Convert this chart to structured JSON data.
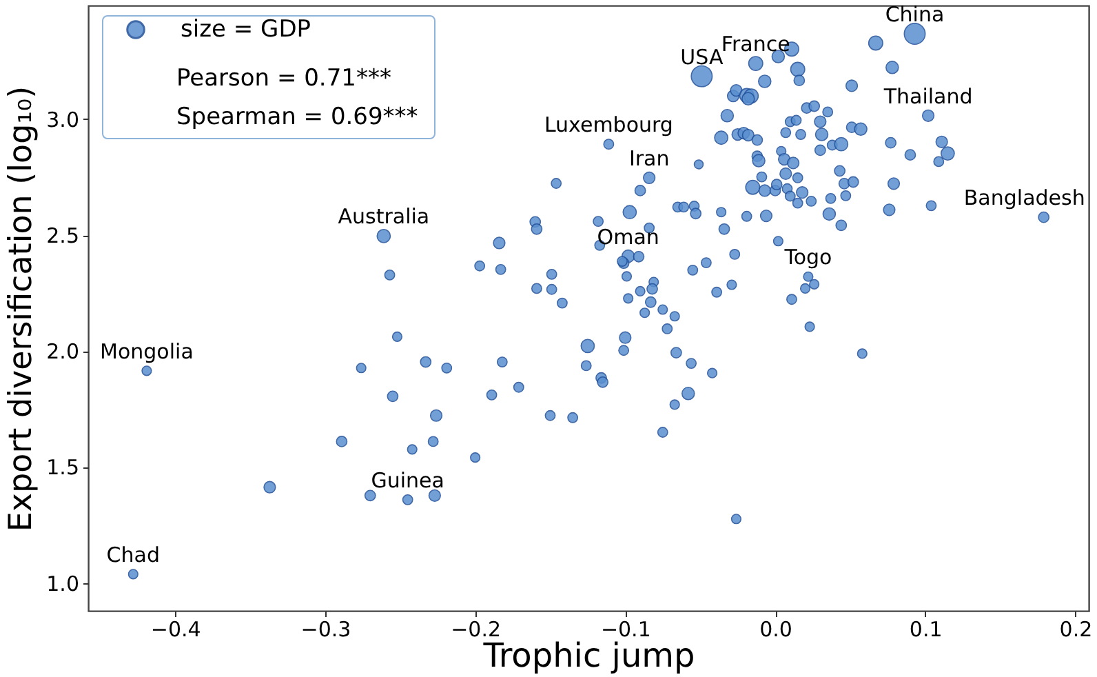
{
  "chart_data": {
    "type": "bubble",
    "xlabel": "Trophic jump",
    "ylabel": "Export diversification (log₁₀)",
    "xlim": [
      -0.458,
      0.209
    ],
    "ylim": [
      0.88,
      3.49
    ],
    "xticks": [
      {
        "value": -0.4,
        "label": "−0.4"
      },
      {
        "value": -0.3,
        "label": "−0.3"
      },
      {
        "value": -0.2,
        "label": "−0.2"
      },
      {
        "value": -0.1,
        "label": "−0.1"
      },
      {
        "value": 0,
        "label": "0.0"
      },
      0.1,
      0.2
    ],
    "yticks": [
      {
        "value": 1,
        "label": "1.0"
      },
      1.5,
      {
        "value": 2,
        "label": "2.0"
      },
      2.5,
      {
        "value": 3,
        "label": "3.0"
      }
    ],
    "legend": "top left",
    "marker": "circle",
    "series": [
      {
        "name": "size = GDP",
        "color": "#5a8fcf",
        "x": [
          -0.146,
          -0.261,
          -0.257,
          -0.184,
          -0.197,
          -0.183,
          -0.16,
          -0.159,
          -0.149,
          -0.159,
          -0.149,
          -0.142,
          0.093,
          0.067,
          0.078,
          0.051,
          0.102,
          -0.049,
          -0.013,
          0.002,
          0.011,
          0.015,
          0.016,
          -0.007,
          -0.028,
          -0.026,
          -0.019,
          -0.016,
          -0.018,
          -0.032,
          -0.036,
          -0.025,
          -0.021,
          -0.018,
          -0.012,
          -0.111,
          -0.051,
          -0.084,
          -0.09,
          -0.097,
          -0.118,
          -0.117,
          -0.084,
          -0.098,
          -0.091,
          -0.101,
          -0.102,
          -0.099,
          -0.081,
          -0.082,
          -0.09,
          -0.098,
          -0.083,
          -0.075,
          -0.087,
          -0.067,
          -0.065,
          -0.061,
          -0.054,
          -0.053,
          -0.036,
          -0.034,
          -0.019,
          -0.006,
          -0.015,
          -0.007,
          0.0,
          0.001,
          -0.009,
          -0.012,
          -0.011,
          0.004,
          0.006,
          0.012,
          0.007,
          0.015,
          0.008,
          0.01,
          0.018,
          0.015,
          0.024,
          0.037,
          0.036,
          0.044,
          0.043,
          0.046,
          0.052,
          0.047,
          0.007,
          0.017,
          0.01,
          0.014,
          0.021,
          0.026,
          0.035,
          0.03,
          0.031,
          0.03,
          0.038,
          0.044,
          0.051,
          0.057,
          0.077,
          0.09,
          0.111,
          0.115,
          0.109,
          0.079,
          0.076,
          0.104,
          0.179,
          -0.027,
          0.002,
          -0.046,
          -0.055,
          -0.039,
          -0.029,
          0.022,
          0.026,
          0.02,
          0.011,
          -0.072,
          -0.1,
          -0.125,
          -0.101,
          -0.066,
          -0.126,
          -0.116,
          -0.115,
          -0.056,
          -0.042,
          -0.058,
          -0.067,
          -0.075,
          -0.026,
          0.023,
          0.058,
          -0.419,
          -0.252,
          -0.276,
          -0.233,
          -0.219,
          -0.255,
          -0.226,
          -0.182,
          -0.189,
          -0.171,
          -0.15,
          -0.135,
          -0.289,
          -0.242,
          -0.228,
          -0.2,
          -0.337,
          -0.27,
          -0.245,
          -0.227,
          -0.428
        ],
        "values": [
          2.723,
          2.496,
          2.328,
          2.466,
          2.367,
          2.352,
          2.557,
          2.526,
          2.331,
          2.27,
          2.266,
          2.207,
          3.368,
          3.328,
          3.223,
          3.144,
          3.015,
          3.185,
          3.24,
          3.27,
          3.302,
          3.215,
          3.167,
          3.163,
          3.1,
          3.124,
          3.102,
          3.1,
          3.088,
          3.015,
          2.92,
          2.934,
          2.94,
          2.931,
          2.91,
          2.892,
          2.805,
          2.747,
          2.692,
          2.599,
          2.559,
          2.456,
          2.531,
          2.409,
          2.407,
          2.379,
          2.387,
          2.322,
          2.298,
          2.268,
          2.258,
          2.227,
          2.211,
          2.179,
          2.165,
          2.15,
          2.621,
          2.621,
          2.625,
          2.593,
          2.599,
          2.526,
          2.581,
          2.583,
          2.706,
          2.692,
          2.692,
          2.718,
          2.751,
          2.84,
          2.821,
          2.862,
          2.827,
          2.811,
          2.765,
          2.747,
          2.7,
          2.668,
          2.684,
          2.638,
          2.646,
          2.658,
          2.591,
          2.542,
          2.777,
          2.722,
          2.729,
          2.67,
          2.942,
          2.934,
          2.989,
          2.995,
          3.048,
          3.056,
          3.031,
          2.989,
          2.934,
          2.866,
          2.888,
          2.892,
          2.965,
          2.957,
          2.898,
          2.846,
          2.902,
          2.852,
          2.817,
          2.722,
          2.609,
          2.627,
          2.577,
          2.417,
          2.474,
          2.381,
          2.349,
          2.254,
          2.286,
          2.321,
          2.288,
          2.27,
          2.223,
          2.096,
          2.058,
          2.022,
          2.003,
          1.993,
          1.937,
          1.884,
          1.866,
          1.947,
          1.905,
          1.817,
          1.769,
          1.65,
          1.276,
          2.105,
          1.989,
          1.915,
          2.062,
          1.927,
          1.953,
          1.927,
          1.805,
          1.722,
          1.953,
          1.811,
          1.844,
          1.722,
          1.713,
          1.61,
          1.576,
          1.61,
          1.541,
          1.413,
          1.377,
          1.359,
          1.377,
          1.038
        ],
        "sizes": [
          0.22,
          0.4,
          0.22,
          0.3,
          0.22,
          0.22,
          0.25,
          0.25,
          0.22,
          0.22,
          0.22,
          0.22,
          1,
          0.45,
          0.35,
          0.3,
          0.3,
          1,
          0.45,
          0.35,
          0.45,
          0.45,
          0.25,
          0.35,
          0.3,
          0.3,
          0.45,
          0.45,
          0.35,
          0.35,
          0.4,
          0.3,
          0.3,
          0.3,
          0.25,
          0.22,
          0.18,
          0.3,
          0.25,
          0.4,
          0.22,
          0.22,
          0.22,
          0.35,
          0.25,
          0.25,
          0.22,
          0.2,
          0.2,
          0.25,
          0.2,
          0.2,
          0.25,
          0.2,
          0.2,
          0.2,
          0.22,
          0.22,
          0.22,
          0.25,
          0.2,
          0.25,
          0.22,
          0.3,
          0.45,
          0.3,
          0.25,
          0.25,
          0.22,
          0.25,
          0.35,
          0.2,
          0.3,
          0.3,
          0.3,
          0.22,
          0.22,
          0.22,
          0.3,
          0.22,
          0.22,
          0.22,
          0.35,
          0.25,
          0.25,
          0.25,
          0.25,
          0.22,
          0.22,
          0.22,
          0.22,
          0.22,
          0.25,
          0.25,
          0.22,
          0.3,
          0.35,
          0.25,
          0.22,
          0.4,
          0.25,
          0.35,
          0.25,
          0.25,
          0.3,
          0.4,
          0.22,
          0.3,
          0.3,
          0.22,
          0.25,
          0.22,
          0.2,
          0.22,
          0.22,
          0.22,
          0.2,
          0.2,
          0.2,
          0.2,
          0.22,
          0.22,
          0.3,
          0.4,
          0.22,
          0.25,
          0.22,
          0.25,
          0.25,
          0.22,
          0.2,
          0.35,
          0.2,
          0.22,
          0.2,
          0.2,
          0.2,
          0.2,
          0.2,
          0.2,
          0.25,
          0.22,
          0.25,
          0.3,
          0.22,
          0.22,
          0.22,
          0.22,
          0.22,
          0.25,
          0.2,
          0.22,
          0.2,
          0.3,
          0.25,
          0.22,
          0.3,
          0.2
        ]
      }
    ],
    "annotations": [
      "Pearson = 0.71***",
      "Spearman = 0.69***",
      {
        "text": "China",
        "x": 0.093,
        "y": 3.368
      },
      {
        "text": "France",
        "x": -0.013,
        "y": 3.24
      },
      {
        "text": "USA",
        "x": -0.049,
        "y": 3.185
      },
      {
        "text": "Thailand",
        "x": 0.102,
        "y": 3.015
      },
      {
        "text": "Luxembourg",
        "x": -0.111,
        "y": 2.892
      },
      {
        "text": "Iran",
        "x": -0.084,
        "y": 2.747
      },
      {
        "text": "Australia",
        "x": -0.261,
        "y": 2.496
      },
      {
        "text": "Bangladesh",
        "x": 0.179,
        "y": 2.577
      },
      {
        "text": "Oman",
        "x": -0.098,
        "y": 2.409
      },
      {
        "text": "Togo",
        "x": 0.022,
        "y": 2.321
      },
      {
        "text": "Mongolia",
        "x": -0.419,
        "y": 1.915
      },
      {
        "text": "Guinea",
        "x": -0.245,
        "y": 1.359
      },
      {
        "text": "Chad",
        "x": -0.428,
        "y": 1.038
      }
    ]
  }
}
